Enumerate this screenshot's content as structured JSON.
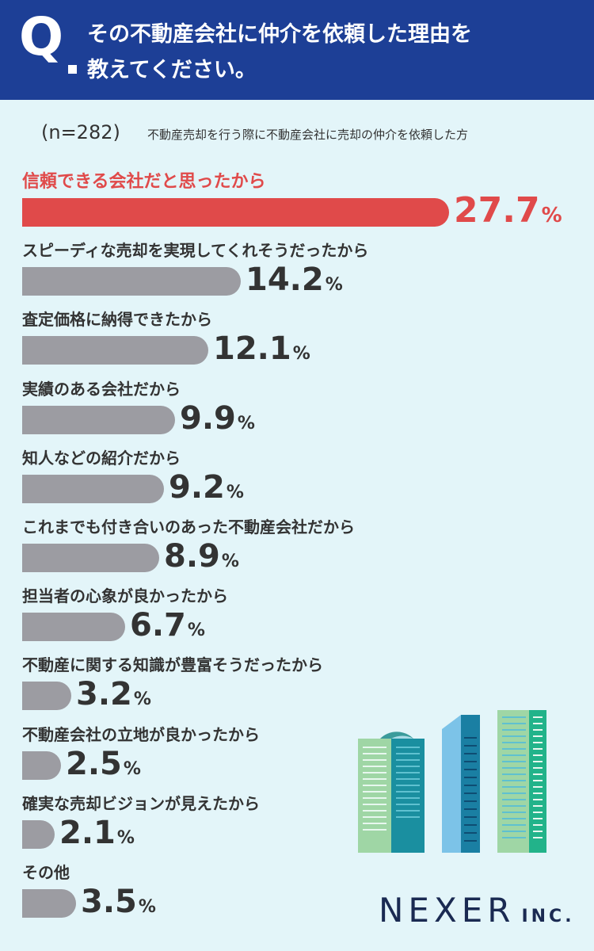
{
  "header": {
    "q_mark": "Q",
    "question_line1": "その不動産会社に仲介を依頼した理由を",
    "question_line2": "教えてください。"
  },
  "sample": {
    "n_label": "(n=282)",
    "description": "不動産売却を行う際に不動産会社に売却の仲介を依頼した方"
  },
  "chart_data": {
    "type": "bar",
    "orientation": "horizontal",
    "unit": "%",
    "categories": [
      "信頼できる会社だと思ったから",
      "スピーディな売却を実現してくれそうだったから",
      "査定価格に納得できたから",
      "実績のある会社だから",
      "知人などの紹介だから",
      "これまでも付き合いのあった不動産会社だから",
      "担当者の心象が良かったから",
      "不動産に関する知識が豊富そうだったから",
      "不動産会社の立地が良かったから",
      "確実な売却ビジョンが見えたから",
      "その他"
    ],
    "values": [
      27.7,
      14.2,
      12.1,
      9.9,
      9.2,
      8.9,
      6.7,
      3.2,
      2.5,
      2.1,
      3.5
    ],
    "value_labels": [
      "27.7",
      "14.2",
      "12.1",
      "9.9",
      "9.2",
      "8.9",
      "6.7",
      "3.2",
      "2.5",
      "2.1",
      "3.5"
    ],
    "highlight_index": 0,
    "colors": {
      "highlight": "#e04a4a",
      "default": "#9c9ca2"
    }
  },
  "logo": {
    "main": "NEXER",
    "suffix": "INC."
  },
  "colors": {
    "header_bg": "#1d3f96",
    "panel_bg": "#e3f5f9",
    "text": "#333333",
    "logo": "#1a2a52"
  },
  "illustration": "city-buildings-icon"
}
